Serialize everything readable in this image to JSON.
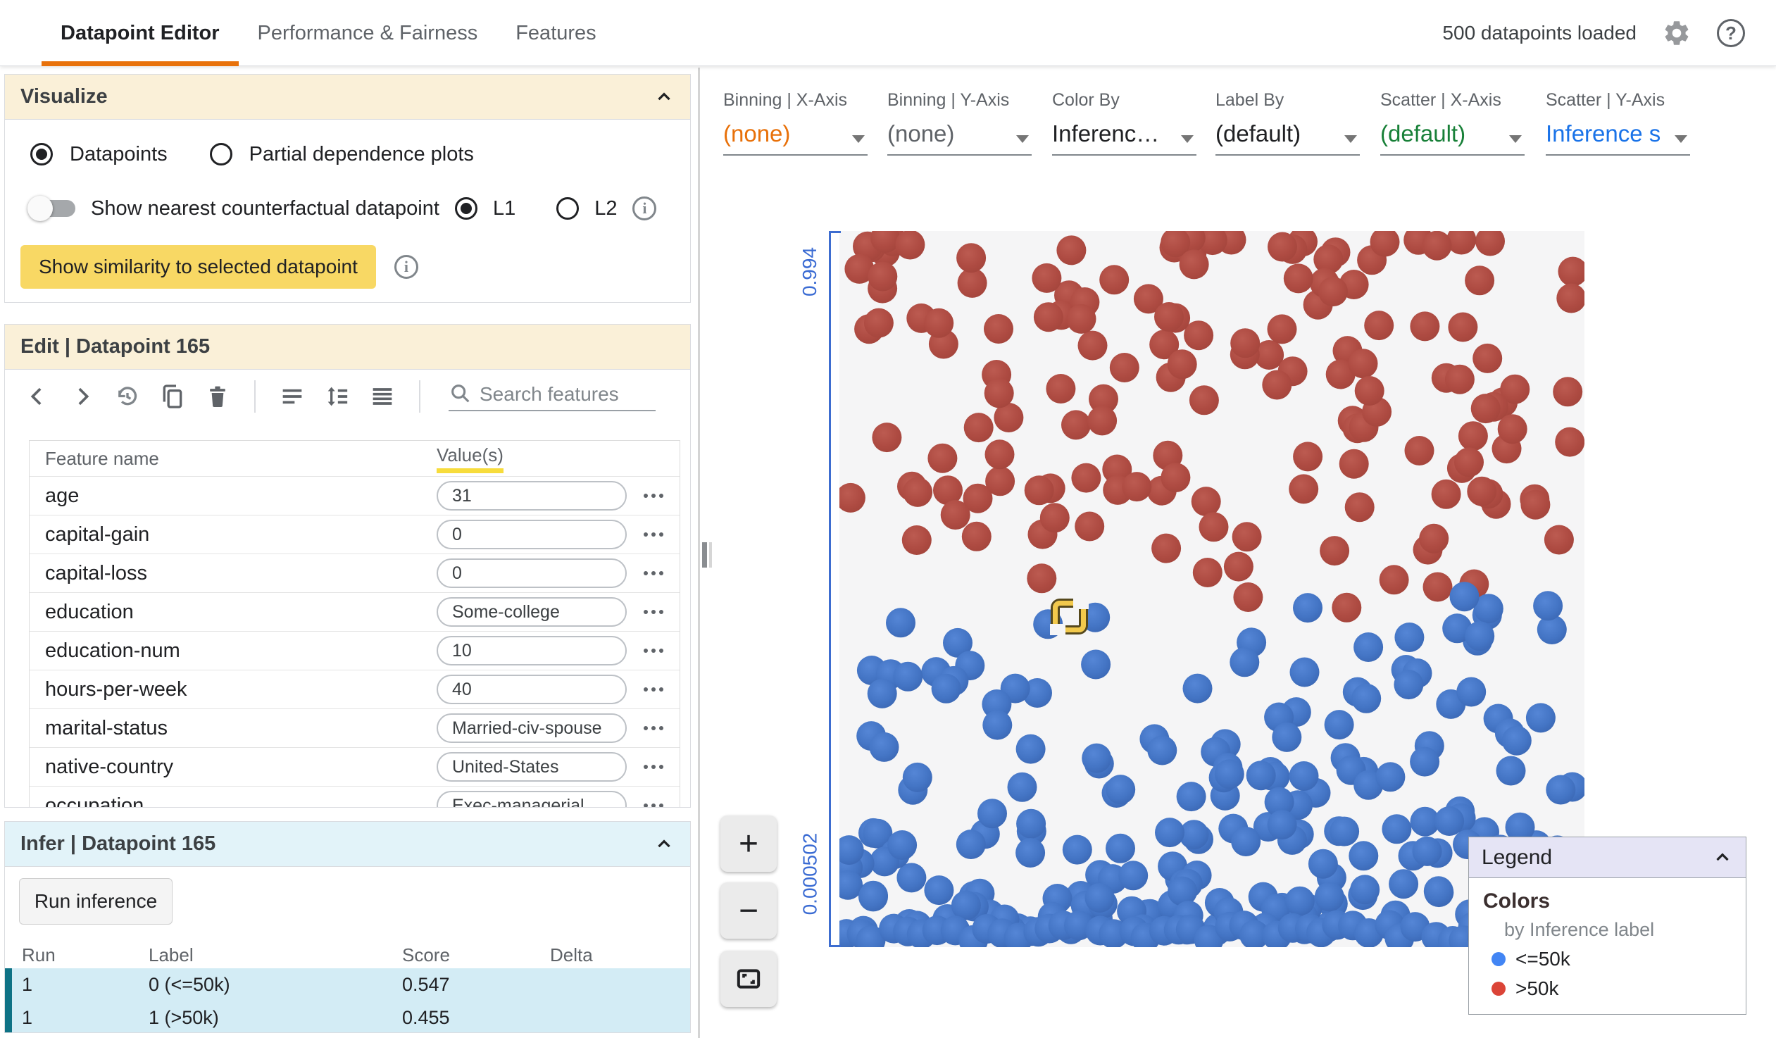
{
  "header": {
    "tabs": [
      {
        "label": "Datapoint Editor"
      },
      {
        "label": "Performance & Fairness"
      },
      {
        "label": "Features"
      }
    ],
    "status": "500 datapoints loaded",
    "help_label": "?"
  },
  "visualize": {
    "title": "Visualize",
    "radio_datapoints": "Datapoints",
    "radio_pdp": "Partial dependence plots",
    "toggle_label": "Show nearest counterfactual datapoint",
    "l1_label": "L1",
    "l2_label": "L2",
    "similarity_button": "Show similarity to selected datapoint"
  },
  "edit": {
    "title": "Edit | Datapoint 165",
    "search_placeholder": "Search features",
    "columns": {
      "name": "Feature name",
      "values": "Value(s)"
    },
    "features": [
      {
        "name": "age",
        "value": "31"
      },
      {
        "name": "capital-gain",
        "value": "0"
      },
      {
        "name": "capital-loss",
        "value": "0"
      },
      {
        "name": "education",
        "value": "Some-college"
      },
      {
        "name": "education-num",
        "value": "10"
      },
      {
        "name": "hours-per-week",
        "value": "40"
      },
      {
        "name": "marital-status",
        "value": "Married-civ-spouse"
      },
      {
        "name": "native-country",
        "value": "United-States"
      },
      {
        "name": "occupation",
        "value": "Exec-managerial"
      }
    ]
  },
  "infer": {
    "title": "Infer | Datapoint 165",
    "run_button": "Run inference",
    "columns": {
      "run": "Run",
      "label": "Label",
      "score": "Score",
      "delta": "Delta"
    },
    "rows": [
      {
        "run": "1",
        "label": "0 (<=50k)",
        "score": "0.547",
        "delta": ""
      },
      {
        "run": "1",
        "label": "1 (>50k)",
        "score": "0.455",
        "delta": ""
      }
    ]
  },
  "controls": [
    {
      "label": "Binning | X-Axis",
      "value": "(none)"
    },
    {
      "label": "Binning | Y-Axis",
      "value": "(none)"
    },
    {
      "label": "Color By",
      "value": "Inferenc…"
    },
    {
      "label": "Label By",
      "value": "(default)"
    },
    {
      "label": "Scatter | X-Axis",
      "value": "(default)"
    },
    {
      "label": "Scatter | Y-Axis",
      "value": "Inference s"
    }
  ],
  "scatterplot": {
    "y_axis_top_label": "0.994",
    "y_axis_bottom_label": "0.000502",
    "zoom_in_label": "+",
    "zoom_out_label": "−",
    "dot_radius": 21,
    "seed": 42,
    "colors": {
      "red": "#AF4A41",
      "blue": "#4678C8"
    },
    "bands": {
      "red": [
        {
          "count": 20,
          "y": [
            8,
            34
          ]
        },
        {
          "count": 100,
          "y": [
            12,
            390
          ]
        },
        {
          "count": 26,
          "y": [
            360,
            500
          ]
        },
        {
          "count": 5,
          "y": [
            460,
            540
          ]
        }
      ],
      "blue": [
        {
          "count": 18,
          "y": [
            495,
            625
          ]
        },
        {
          "count": 45,
          "y": [
            610,
            775
          ]
        },
        {
          "count": 85,
          "y": [
            765,
            945
          ]
        },
        {
          "count": 55,
          "y": [
            935,
            995
          ]
        },
        {
          "count": 46,
          "y": [
            985,
            1010
          ],
          "row": true
        }
      ]
    }
  },
  "legend": {
    "title": "Legend",
    "section": "Colors",
    "subtitle": "by Inference label",
    "items": [
      {
        "label": "<=50k",
        "color": "#4285F4"
      },
      {
        "label": ">50k",
        "color": "#DB4437"
      }
    ]
  }
}
